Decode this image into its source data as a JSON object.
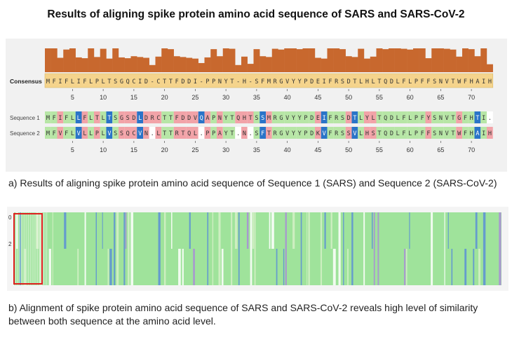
{
  "title": "Results of aligning spike protein amino acid sequence of SARS and SARS-CoV-2",
  "panel_a": {
    "consensus_label": "Consensus",
    "seq1_label": "Sequence 1",
    "seq2_label": "Sequence 2",
    "consensus": "MFIFLIFLPLTSGQCID-CTTFDDI-PPNYT-H-SFMRGVYYPDEIFRSDTLHLTQDLFLPFFSNVTWFHAIH",
    "seq1": "MFIFLLFLTLTSGSDLDRCTTFDDVQAPNYTQHTSSMRGVYYPDEIFRSDTLYLTQDLFLPFYSNVTGFHTI.",
    "seq2": "MFVFLVLLPLVSSQCVN.LTTRTQL.PPAYT.N.SFTRGVYYPDKVFRSSVLHSTQDLFLPFFSNVTWFHAIH",
    "ruler_ticks": [
      "5",
      "10",
      "15",
      "20",
      "25",
      "30",
      "35",
      "40",
      "45",
      "50",
      "55",
      "60",
      "65",
      "70"
    ],
    "colors": {
      "conservation_bar": "#c8682e",
      "consensus_bg": "#f5d48c",
      "identical": "#b7e6a6",
      "mismatch": "#f2a3a8",
      "similar": "#2a74c8",
      "gap": "#ffffff"
    }
  },
  "caption_a": "a) Results of aligning spike protein amino acid sequence of Sequence 1 (SARS) and Sequence 2 (SARS-CoV-2)",
  "panel_b": {
    "row_labels": [
      "0",
      "2"
    ],
    "overview_colors": {
      "identical": "#9fe39b",
      "blue": "#5b8fd6",
      "purple": "#a98bd8",
      "light": "#d5f0c7",
      "gap": "#ffffff",
      "highlight_box": "#e02020"
    }
  },
  "caption_b": "b) Alignment of spike protein amino acid sequence of SARS and SARS-CoV-2 reveals high level of similarity between both sequence at the amino acid level."
}
